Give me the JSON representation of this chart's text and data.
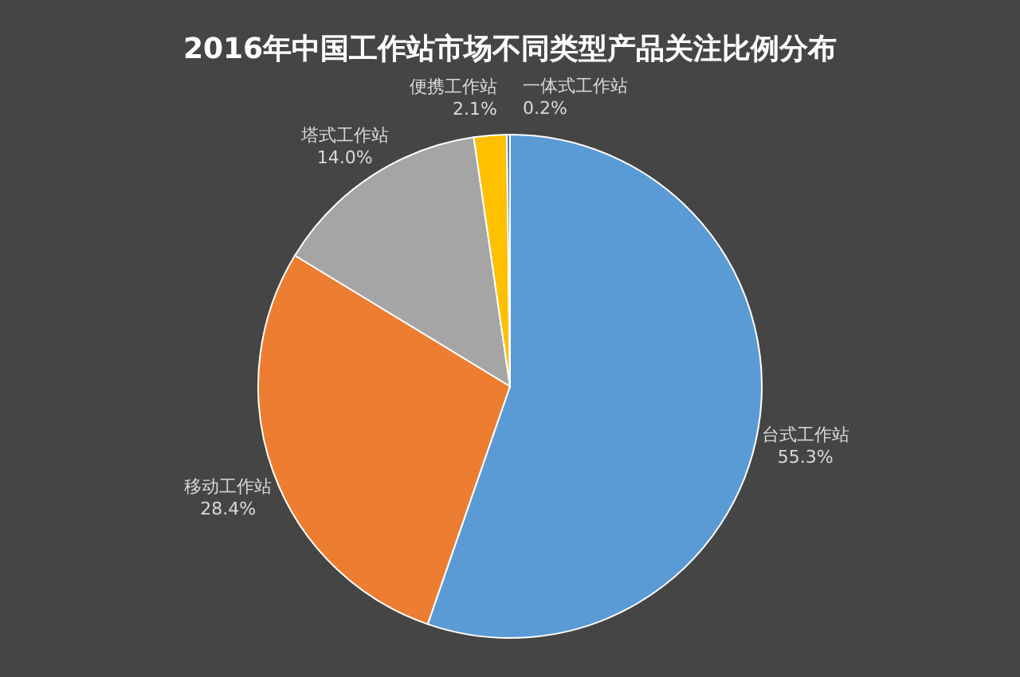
{
  "chart_data": {
    "type": "pie",
    "title": "2016年中国工作站市场不同类型产品关注比例分布",
    "categories": [
      "台式工作站",
      "移动工作站",
      "塔式工作站",
      "便携工作站",
      "一体式工作站"
    ],
    "values": [
      55.3,
      28.4,
      14.0,
      2.1,
      0.2
    ],
    "colors": [
      "#5b9bd5",
      "#ed7d31",
      "#a5a5a5",
      "#ffc000",
      "#4472c4"
    ],
    "value_labels": [
      "55.3%",
      "28.4%",
      "14.0%",
      "2.1%",
      "0.2%"
    ],
    "legend": false
  }
}
